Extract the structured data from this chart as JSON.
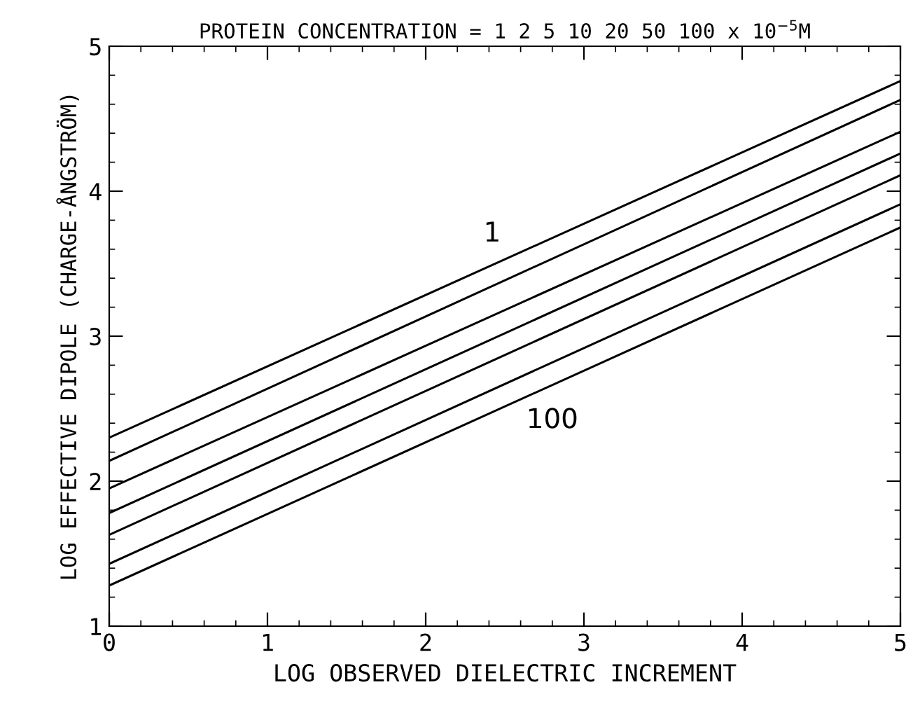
{
  "chart_data": {
    "type": "line",
    "title": "PROTEIN CONCENTRATION = 1 2 5 10 20 50 100 x 10$^{−5}$M",
    "xlabel": "LOG OBSERVED DIELECTRIC INCREMENT",
    "ylabel": "LOG EFFECTIVE DIPOLE (CHARGE-ÅNGSTRÖM)",
    "x": [
      0,
      5
    ],
    "series": [
      {
        "color": "#000000",
        "values": [
          2.3,
          4.76
        ]
      },
      {
        "color": "#000000",
        "values": [
          2.14,
          4.63
        ]
      },
      {
        "color": "#000000",
        "values": [
          1.95,
          4.41
        ]
      },
      {
        "color": "#000000",
        "values": [
          1.78,
          4.26
        ]
      },
      {
        "color": "#000000",
        "values": [
          1.63,
          4.11
        ]
      },
      {
        "color": "#000000",
        "values": [
          1.43,
          3.91
        ]
      },
      {
        "color": "#000000",
        "values": [
          1.28,
          3.75
        ]
      }
    ],
    "annotations": [
      {
        "text": "1",
        "x": 2.42,
        "y": 3.49
      },
      {
        "text": "100",
        "x": 2.8,
        "y": 2.66
      }
    ],
    "xlim": [
      0,
      5
    ],
    "xticks": [
      0,
      1,
      2,
      3,
      4,
      5
    ],
    "ylim": [
      1,
      5
    ],
    "yticks": [
      1,
      2,
      3,
      4,
      5
    ],
    "grid": false,
    "legend": false,
    "marker": "none",
    "line_style": "solid"
  }
}
